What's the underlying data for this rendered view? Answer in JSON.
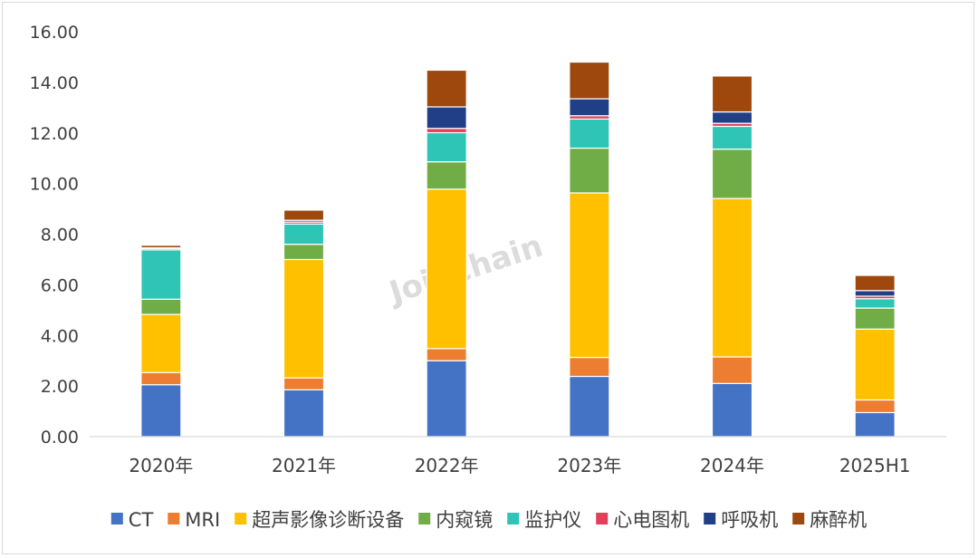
{
  "watermark": "Joinchain",
  "chart_data": {
    "type": "bar",
    "stacked": true,
    "categories": [
      "2020年",
      "2021年",
      "2022年",
      "2023年",
      "2024年",
      "2025H1"
    ],
    "ylim": [
      0,
      16
    ],
    "yticks": [
      "0.00",
      "2.00",
      "4.00",
      "6.00",
      "8.00",
      "10.00",
      "12.00",
      "14.00",
      "16.00"
    ],
    "grid": false,
    "legend_position": "bottom",
    "series": [
      {
        "name": "CT",
        "color": "#4472C4",
        "values": [
          2.05,
          1.85,
          3.0,
          2.38,
          2.1,
          0.95
        ]
      },
      {
        "name": "MRI",
        "color": "#ED7D31",
        "values": [
          0.48,
          0.47,
          0.48,
          0.75,
          1.05,
          0.5
        ]
      },
      {
        "name": "超声影像诊断设备",
        "color": "#FFC000",
        "values": [
          2.3,
          4.68,
          6.3,
          6.5,
          6.26,
          2.8
        ]
      },
      {
        "name": "内窥镜",
        "color": "#70AD47",
        "values": [
          0.6,
          0.6,
          1.08,
          1.77,
          1.95,
          0.83
        ]
      },
      {
        "name": "监护仪",
        "color": "#2EC4B6",
        "values": [
          1.95,
          0.8,
          1.15,
          1.15,
          0.9,
          0.37
        ]
      },
      {
        "name": "心电图机",
        "color": "#E0405A",
        "values": [
          0.05,
          0.08,
          0.17,
          0.13,
          0.12,
          0.1
        ]
      },
      {
        "name": "呼吸机",
        "color": "#203F86",
        "values": [
          0.03,
          0.07,
          0.85,
          0.67,
          0.45,
          0.22
        ]
      },
      {
        "name": "麻醉机",
        "color": "#9E480E",
        "values": [
          0.1,
          0.4,
          1.45,
          1.45,
          1.42,
          0.6
        ]
      }
    ]
  }
}
